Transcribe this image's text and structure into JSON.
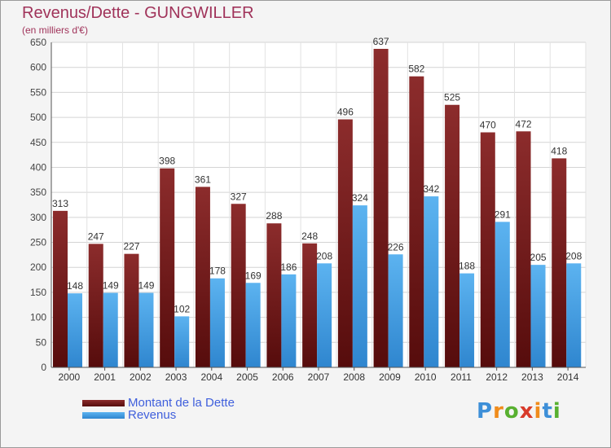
{
  "title": "Revenus/Dette - GUNGWILLER",
  "subtitle": "(en milliers d'€)",
  "colors": {
    "dette": "#7a1c1c",
    "revenus": "#4aa3e6",
    "title": "#a0335a",
    "legend_text": "#3f5fdc"
  },
  "logo": {
    "letters": [
      "P",
      "r",
      "o",
      "x",
      "i",
      "t",
      "i"
    ],
    "colors": [
      "#3d8fd8",
      "#f08c1c",
      "#58b030",
      "#d83a2a",
      "#f08c1c",
      "#3d8fd8",
      "#58b030"
    ]
  },
  "chart_data": {
    "type": "bar",
    "title": "Revenus/Dette - GUNGWILLER",
    "ylabel": "(en milliers d'€)",
    "ylim": [
      0,
      650
    ],
    "yticks": [
      0,
      50,
      100,
      150,
      200,
      250,
      300,
      350,
      400,
      450,
      500,
      550,
      600,
      650
    ],
    "grid": true,
    "legend_position": "bottom-left",
    "categories": [
      "2000",
      "2001",
      "2002",
      "2003",
      "2004",
      "2005",
      "2006",
      "2007",
      "2008",
      "2009",
      "2010",
      "2011",
      "2012",
      "2013",
      "2014"
    ],
    "series": [
      {
        "name": "Montant de la Dette",
        "values": [
          313,
          247,
          227,
          398,
          361,
          327,
          288,
          248,
          496,
          637,
          582,
          525,
          470,
          472,
          418
        ]
      },
      {
        "name": "Revenus",
        "values": [
          148,
          149,
          149,
          102,
          178,
          169,
          186,
          208,
          324,
          226,
          342,
          188,
          291,
          205,
          208
        ]
      }
    ]
  }
}
